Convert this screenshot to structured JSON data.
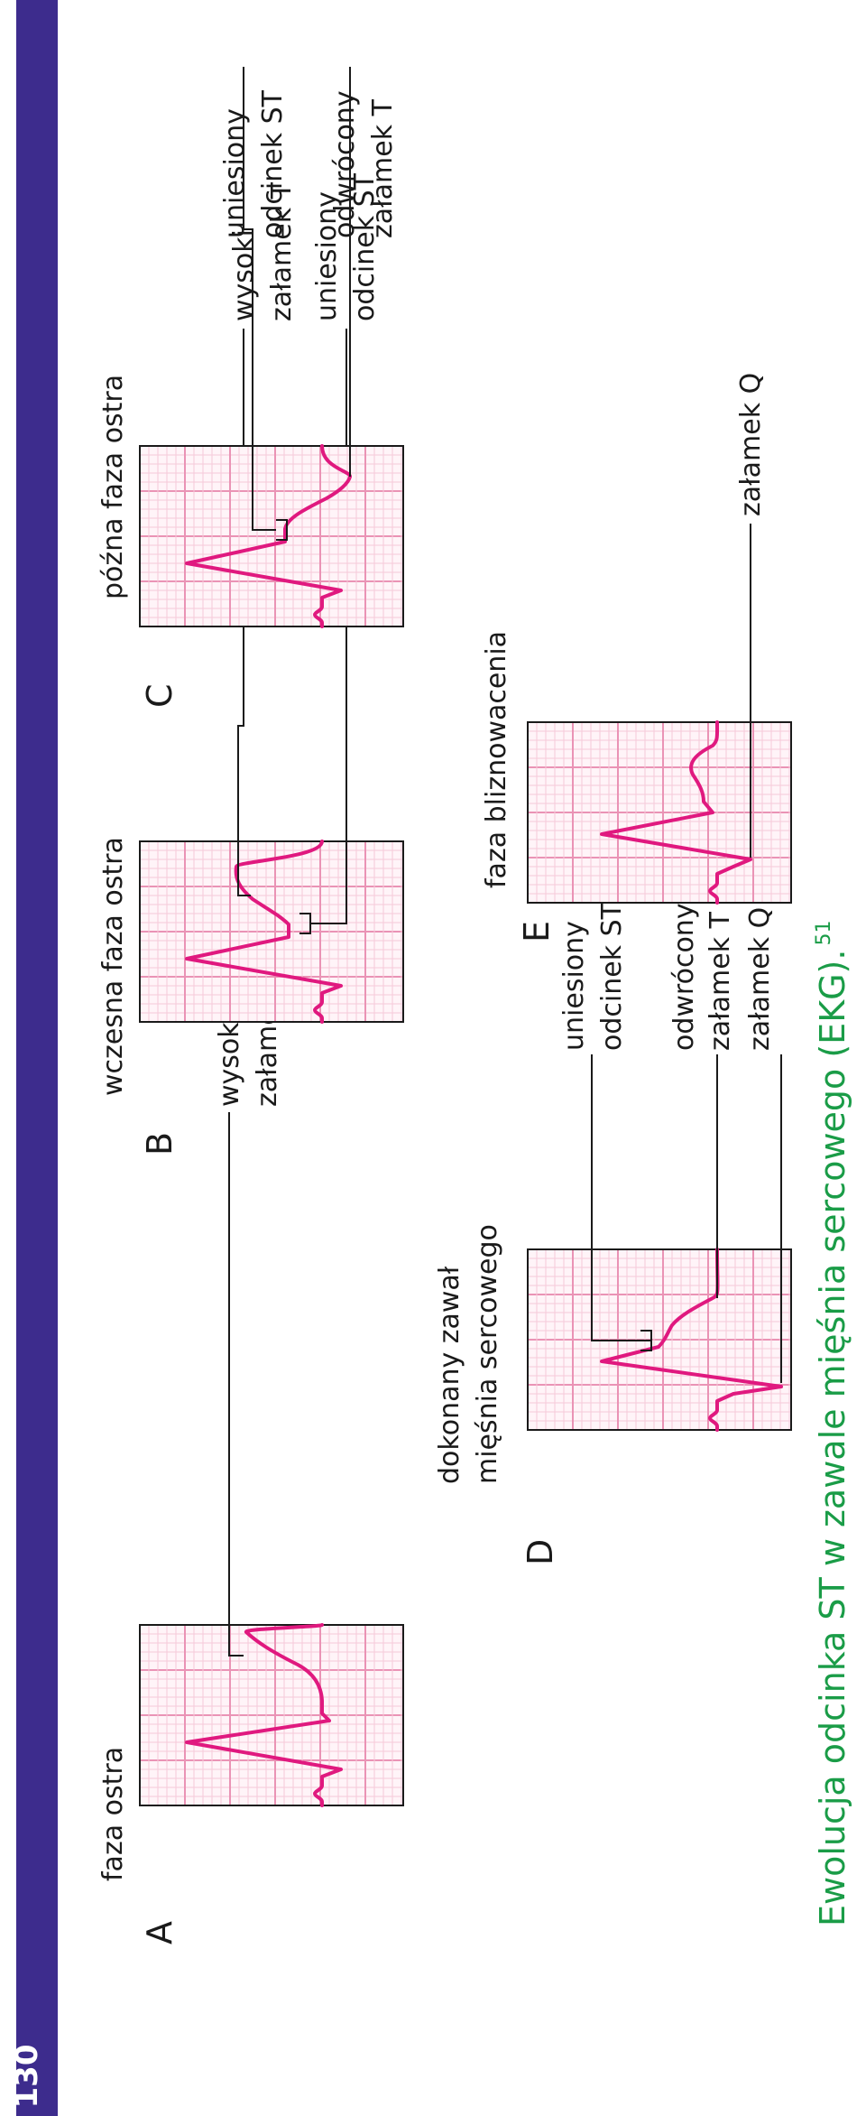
{
  "page_number": "130",
  "colors": {
    "sidebar": "#3d2c8d",
    "grid_minor": "#f6c9d9",
    "grid_major": "#ea93b5",
    "trace": "#e0197f",
    "caption": "#1a9c47",
    "leader": "#1a1a1a"
  },
  "caption": {
    "text": "Ewolucja odcinka ST w zawale mięśnia sercowego (EKG).",
    "footnote": "51"
  },
  "panels": [
    {
      "letter": "A",
      "title_lines": [
        "faza ostra"
      ],
      "annotations": [
        {
          "lines": [
            "wysoki",
            "załamek T"
          ]
        }
      ]
    },
    {
      "letter": "B",
      "title_lines": [
        "wczesna faza ostra"
      ],
      "annotations": [
        {
          "lines": [
            "wysoki",
            "załamek T"
          ]
        },
        {
          "lines": [
            "uniesiony",
            "odcinek ST"
          ]
        }
      ]
    },
    {
      "letter": "C",
      "title_lines": [
        "późna faza ostra"
      ],
      "annotations": [
        {
          "lines": [
            "uniesiony",
            "odcinek ST"
          ]
        },
        {
          "lines": [
            "odwrócony",
            "załamek T"
          ]
        }
      ]
    },
    {
      "letter": "D",
      "title_lines": [
        "dokonany zawał",
        "mięśnia sercowego"
      ],
      "annotations": [
        {
          "lines": [
            "uniesiony",
            "odcinek ST"
          ]
        },
        {
          "lines": [
            "odwrócony",
            "załamek T"
          ]
        },
        {
          "lines": [
            "załamek Q"
          ]
        }
      ]
    },
    {
      "letter": "E",
      "title_lines": [
        "faza bliznowacenia"
      ],
      "annotations": [
        {
          "lines": [
            "załamek Q"
          ]
        }
      ]
    }
  ]
}
